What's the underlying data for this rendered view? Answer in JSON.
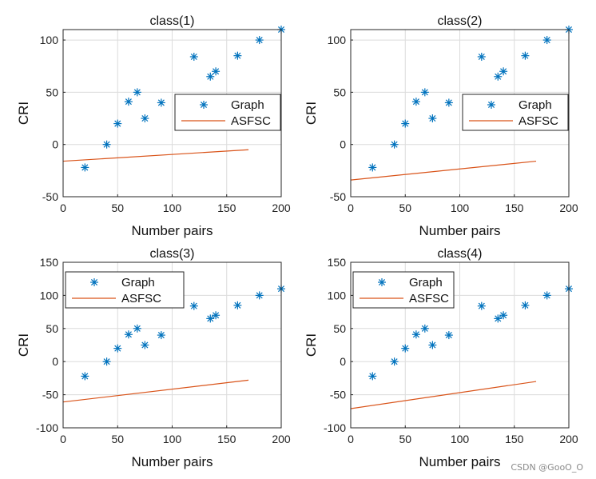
{
  "chart_data": [
    {
      "type": "scatter+line",
      "title": "class(1)",
      "xlabel": "Number pairs",
      "ylabel": "CRI",
      "xlim": [
        0,
        200
      ],
      "ylim": [
        -50,
        110
      ],
      "xticks": [
        0,
        50,
        100,
        150,
        200
      ],
      "yticks": [
        -50,
        0,
        50,
        100
      ],
      "grid": true,
      "legend_position": "right",
      "series": [
        {
          "name": "Graph",
          "kind": "scatter",
          "marker": "asterisk",
          "color": "#0072BD",
          "x": [
            20,
            40,
            50,
            60,
            68,
            75,
            90,
            120,
            135,
            140,
            160,
            180,
            200
          ],
          "y": [
            -22,
            0,
            20,
            41,
            50,
            25,
            40,
            84,
            65,
            70,
            85,
            100,
            110
          ]
        },
        {
          "name": "ASFSC",
          "kind": "line",
          "color": "#D95319",
          "x": [
            0,
            170
          ],
          "y": [
            -16,
            -5
          ]
        }
      ]
    },
    {
      "type": "scatter+line",
      "title": "class(2)",
      "xlabel": "Number pairs",
      "ylabel": "CRI",
      "xlim": [
        0,
        200
      ],
      "ylim": [
        -50,
        110
      ],
      "xticks": [
        0,
        50,
        100,
        150,
        200
      ],
      "yticks": [
        -50,
        0,
        50,
        100
      ],
      "grid": true,
      "legend_position": "right",
      "series": [
        {
          "name": "Graph",
          "kind": "scatter",
          "marker": "asterisk",
          "color": "#0072BD",
          "x": [
            20,
            40,
            50,
            60,
            68,
            75,
            90,
            120,
            135,
            140,
            160,
            180,
            200
          ],
          "y": [
            -22,
            0,
            20,
            41,
            50,
            25,
            40,
            84,
            65,
            70,
            85,
            100,
            110
          ]
        },
        {
          "name": "ASFSC",
          "kind": "line",
          "color": "#D95319",
          "x": [
            0,
            170
          ],
          "y": [
            -34,
            -16
          ]
        }
      ]
    },
    {
      "type": "scatter+line",
      "title": "class(3)",
      "xlabel": "Number pairs",
      "ylabel": "CRI",
      "xlim": [
        0,
        200
      ],
      "ylim": [
        -100,
        150
      ],
      "xticks": [
        0,
        50,
        100,
        150,
        200
      ],
      "yticks": [
        -100,
        -50,
        0,
        50,
        100,
        150
      ],
      "grid": true,
      "legend_position": "top-left",
      "series": [
        {
          "name": "Graph",
          "kind": "scatter",
          "marker": "asterisk",
          "color": "#0072BD",
          "x": [
            20,
            40,
            50,
            60,
            68,
            75,
            90,
            120,
            135,
            140,
            160,
            180,
            200
          ],
          "y": [
            -22,
            0,
            20,
            41,
            50,
            25,
            40,
            84,
            65,
            70,
            85,
            100,
            110
          ]
        },
        {
          "name": "ASFSC",
          "kind": "line",
          "color": "#D95319",
          "x": [
            0,
            170
          ],
          "y": [
            -61,
            -28
          ]
        }
      ]
    },
    {
      "type": "scatter+line",
      "title": "class(4)",
      "xlabel": "Number pairs",
      "ylabel": "CRI",
      "xlim": [
        0,
        200
      ],
      "ylim": [
        -100,
        150
      ],
      "xticks": [
        0,
        50,
        100,
        150,
        200
      ],
      "yticks": [
        -100,
        -50,
        0,
        50,
        100,
        150
      ],
      "grid": true,
      "legend_position": "top-left",
      "series": [
        {
          "name": "Graph",
          "kind": "scatter",
          "marker": "asterisk",
          "color": "#0072BD",
          "x": [
            20,
            40,
            50,
            60,
            68,
            75,
            90,
            120,
            135,
            140,
            160,
            180,
            200
          ],
          "y": [
            -22,
            0,
            20,
            41,
            50,
            25,
            40,
            84,
            65,
            70,
            85,
            100,
            110
          ]
        },
        {
          "name": "ASFSC",
          "kind": "line",
          "color": "#D95319",
          "x": [
            0,
            170
          ],
          "y": [
            -71,
            -30
          ]
        }
      ]
    }
  ],
  "watermark": "CSDN @GooO_O"
}
